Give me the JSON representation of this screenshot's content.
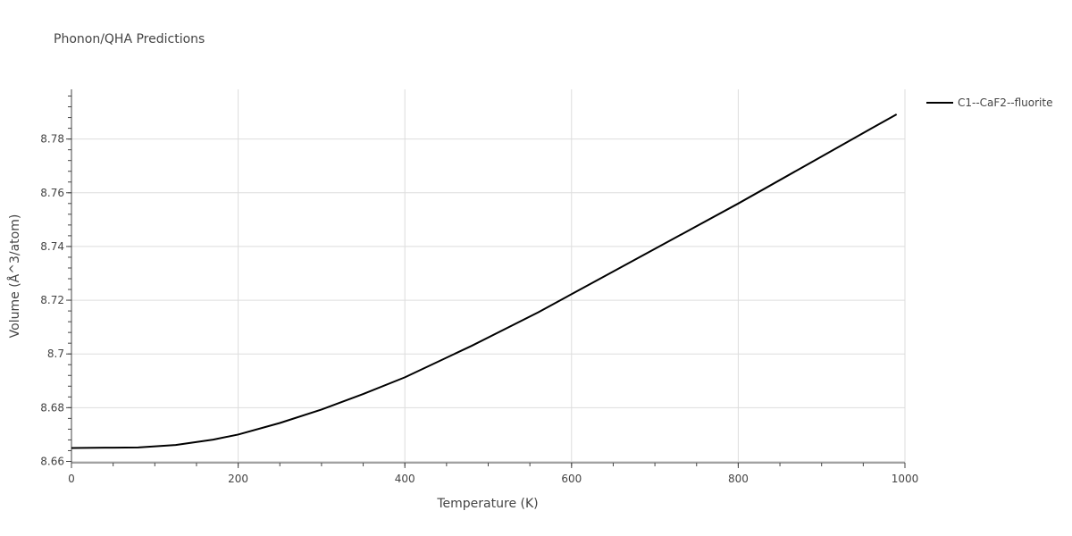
{
  "chart_data": {
    "type": "line",
    "title": "Phonon/QHA Predictions",
    "xlabel": "Temperature (K)",
    "ylabel": "Volume (Å^3/atom)",
    "xlim": [
      0,
      1000
    ],
    "ylim": [
      8.6595,
      8.7985
    ],
    "x_ticks": [
      0,
      200,
      400,
      600,
      800,
      1000
    ],
    "y_ticks": [
      8.66,
      8.68,
      8.7,
      8.72,
      8.74,
      8.76,
      8.78
    ],
    "x_tick_labels": [
      "0",
      "200",
      "400",
      "600",
      "800",
      "1000"
    ],
    "y_tick_labels": [
      "8.66",
      "8.68",
      "8.7",
      "8.72",
      "8.74",
      "8.76",
      "8.78"
    ],
    "grid": true,
    "legend_position": "top-right outside",
    "series": [
      {
        "name": "C1--CaF2--fluorite",
        "color": "#000000",
        "x": [
          0,
          40,
          80,
          125,
          170,
          200,
          250,
          300,
          350,
          400,
          480,
          560,
          640,
          720,
          800,
          880,
          960,
          990
        ],
        "y": [
          8.665,
          8.6651,
          8.6652,
          8.6661,
          8.6681,
          8.67,
          8.6743,
          8.6793,
          8.6851,
          8.6913,
          8.703,
          8.7155,
          8.729,
          8.7425,
          8.756,
          8.77,
          8.784,
          8.7892
        ]
      }
    ]
  }
}
